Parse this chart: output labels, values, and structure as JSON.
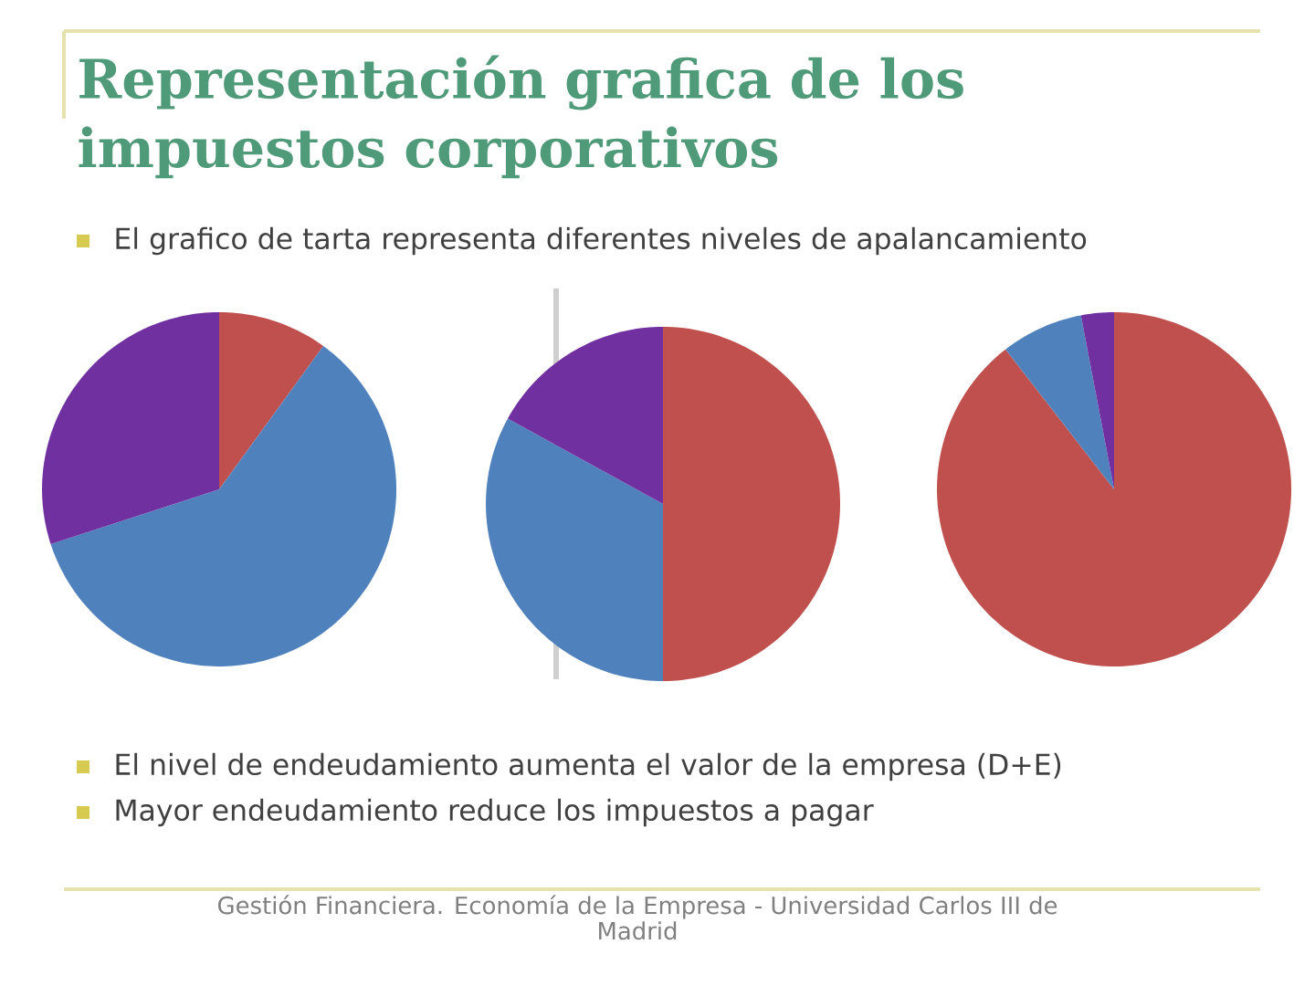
{
  "chart_data": [
    {
      "type": "pie",
      "title": "Representación grafica de los impuestos corporativos",
      "subtitle": "El grafico de tarta representa diferentes niveles de apalancamiento",
      "annotations": [
        "El nivel de endeudamiento aumenta el valor de la empresa (D+E)",
        "Mayor endeudamiento reduce los impuestos a pagar",
        "Gestión Financiera. Economía de la Empresa - Universidad Carlos III de Madrid"
      ],
      "categories": [
        null,
        null,
        null
      ],
      "values": [
        10,
        60,
        30
      ],
      "colors": [
        "#c0504d",
        "#4f81bd",
        "#7030a0"
      ]
    },
    {
      "type": "pie",
      "categories": [
        null,
        null,
        null
      ],
      "values": [
        50,
        33,
        17
      ],
      "colors": [
        "#c0504d",
        "#4f81bd",
        "#7030a0"
      ]
    },
    {
      "type": "pie",
      "categories": [
        null,
        null,
        null
      ],
      "values": [
        89.5,
        7.5,
        3
      ],
      "colors": [
        "#c0504d",
        "#4f81bd",
        "#7030a0"
      ]
    }
  ]
}
